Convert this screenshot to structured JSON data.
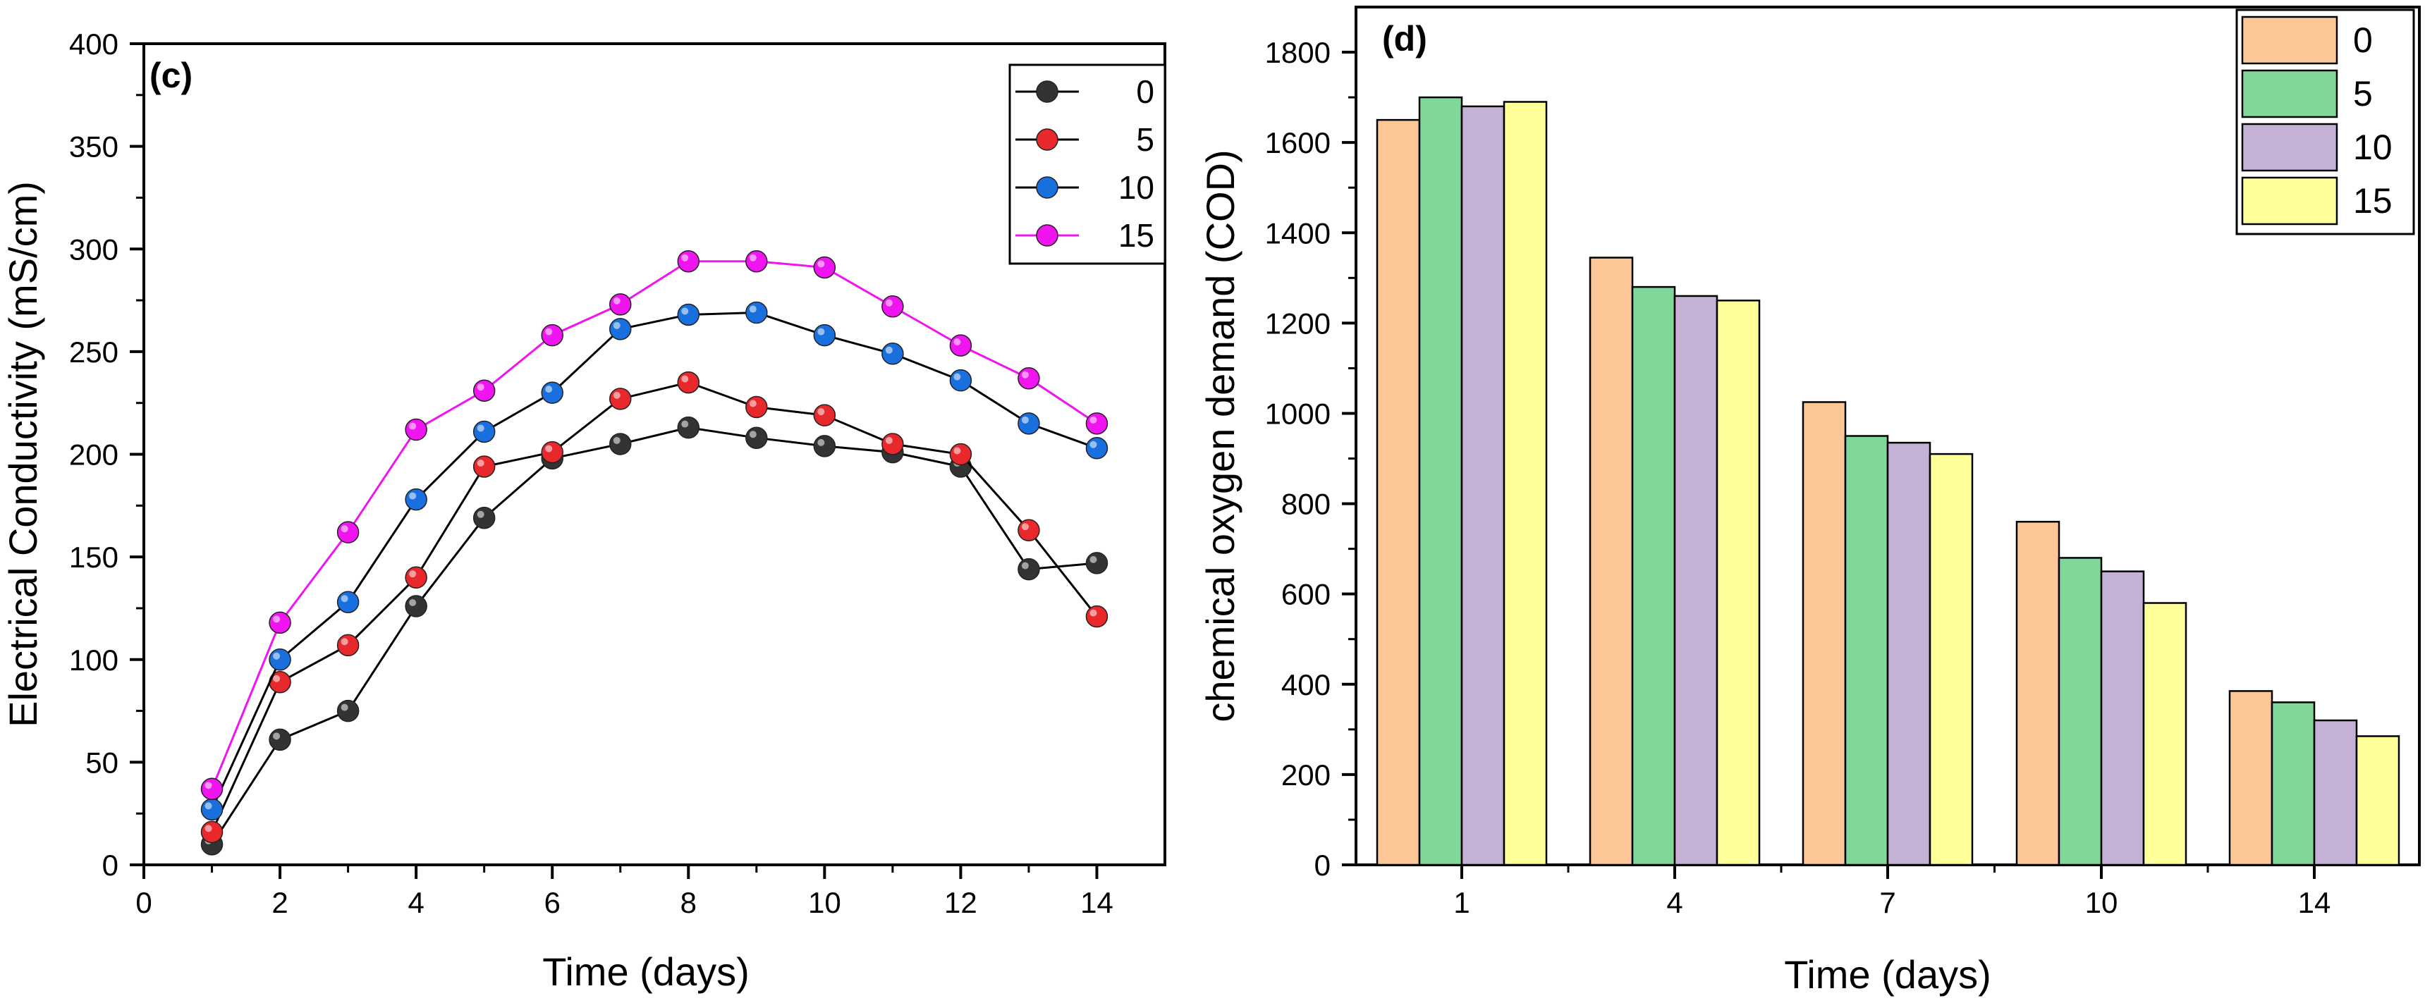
{
  "chart_data": [
    {
      "type": "line",
      "panel_label": "(c)",
      "title": "",
      "xlabel": "Time (days)",
      "ylabel": "Electrical Conductivity (mS/cm)",
      "xlim": [
        0,
        15
      ],
      "ylim": [
        0,
        400
      ],
      "x_ticks": [
        0,
        2,
        4,
        6,
        8,
        10,
        12,
        14
      ],
      "y_ticks": [
        0,
        50,
        100,
        150,
        200,
        250,
        300,
        350,
        400
      ],
      "x": [
        1,
        2,
        3,
        4,
        5,
        6,
        7,
        8,
        9,
        10,
        11,
        12,
        13,
        14
      ],
      "legend_position": "top-right",
      "series": [
        {
          "name": "0",
          "color": "#333333",
          "values": [
            10,
            61,
            75,
            126,
            169,
            198,
            205,
            213,
            208,
            204,
            201,
            194,
            144,
            147
          ]
        },
        {
          "name": "5",
          "color": "#e8282b",
          "values": [
            16,
            89,
            107,
            140,
            194,
            201,
            227,
            235,
            223,
            219,
            205,
            200,
            163,
            121
          ]
        },
        {
          "name": "10",
          "color": "#1a6fdf",
          "values": [
            27,
            100,
            128,
            178,
            211,
            230,
            261,
            268,
            269,
            258,
            249,
            236,
            215,
            203
          ]
        },
        {
          "name": "15",
          "color": "#f014f0",
          "values": [
            37,
            118,
            162,
            212,
            231,
            258,
            273,
            294,
            294,
            291,
            272,
            253,
            237,
            215
          ]
        }
      ]
    },
    {
      "type": "bar",
      "panel_label": "(d)",
      "title": "",
      "xlabel": "Time (days)",
      "ylabel": "chemical oxygen demand (COD)",
      "ylim": [
        0,
        1900
      ],
      "y_ticks": [
        0,
        200,
        400,
        600,
        800,
        1000,
        1200,
        1400,
        1600,
        1800
      ],
      "categories": [
        "1",
        "4",
        "7",
        "10",
        "14"
      ],
      "legend_position": "top-right",
      "series": [
        {
          "name": "0",
          "color": "#fcc797",
          "values": [
            1650,
            1345,
            1025,
            760,
            385
          ]
        },
        {
          "name": "5",
          "color": "#7fd89a",
          "values": [
            1700,
            1280,
            950,
            680,
            360
          ]
        },
        {
          "name": "10",
          "color": "#c5b0d6",
          "values": [
            1680,
            1260,
            935,
            650,
            320
          ]
        },
        {
          "name": "15",
          "color": "#ffff99",
          "values": [
            1690,
            1250,
            910,
            580,
            285
          ]
        }
      ]
    }
  ]
}
